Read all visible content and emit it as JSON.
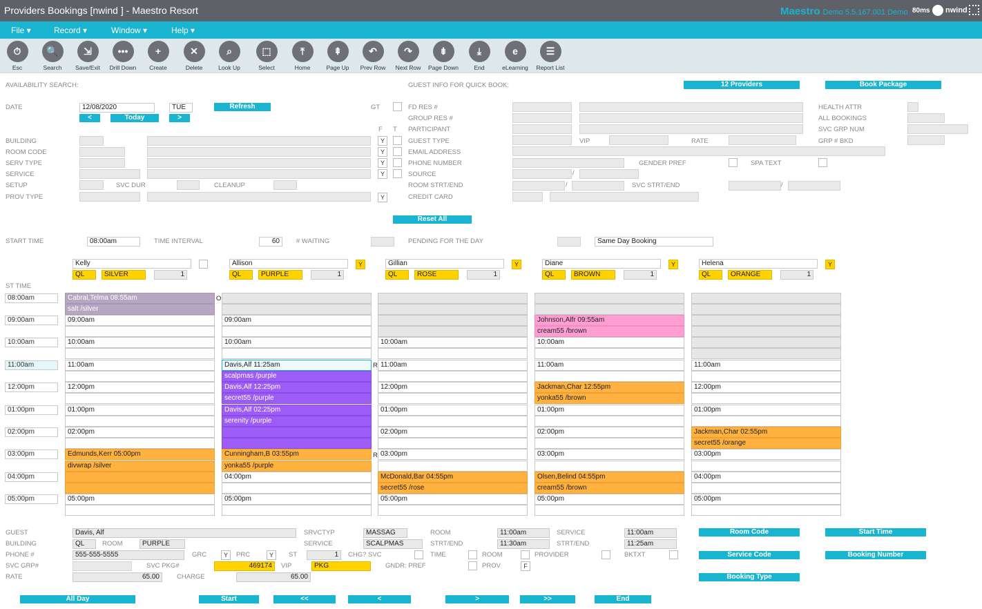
{
  "app": {
    "title": "Providers Bookings [nwind   ] - Maestro Resort",
    "brand": "Maestro",
    "version": "Demo  5.5.167.001  Demo",
    "latency": "80ms",
    "user": "nwind"
  },
  "menu": [
    "File ▾",
    "Record ▾",
    "Window ▾",
    "Help ▾"
  ],
  "toolbar": [
    {
      "label": "Esc",
      "icon": "⏱"
    },
    {
      "label": "Search",
      "icon": "🔍"
    },
    {
      "label": "Save/Exit",
      "icon": "⇲"
    },
    {
      "label": "Drill Down",
      "icon": "•••"
    },
    {
      "label": "Create",
      "icon": "+"
    },
    {
      "label": "Delete",
      "icon": "✕"
    },
    {
      "label": "Look Up",
      "icon": "⌕"
    },
    {
      "label": "Select",
      "icon": "⬚"
    },
    {
      "label": "Home",
      "icon": "⤒"
    },
    {
      "label": "Page Up",
      "icon": "⇞"
    },
    {
      "label": "Prev Row",
      "icon": "↶"
    },
    {
      "label": "Next Row",
      "icon": "↷"
    },
    {
      "label": "Page Down",
      "icon": "⇟"
    },
    {
      "label": "End",
      "icon": "⤓"
    },
    {
      "label": "eLearning",
      "icon": "e"
    },
    {
      "label": "Report List",
      "icon": "☰"
    }
  ],
  "search": {
    "section": "AVAILABILITY SEARCH:",
    "date_label": "DATE",
    "date": "12/08/2020",
    "day": "TUE",
    "refresh": "Refresh",
    "prev": "<",
    "today": "Today",
    "next": ">",
    "labels": [
      "BUILDING",
      "ROOM CODE",
      "SERV TYPE",
      "SERVICE",
      "SETUP",
      "PROV TYPE"
    ],
    "svc_dur": "SVC DUR",
    "cleanup": "CLEANUP"
  },
  "guest": {
    "section": "GUEST INFO FOR QUICK BOOK:",
    "providers_btn": "12 Providers",
    "package_btn": "Book Package",
    "gt": "GT",
    "f": "F",
    "t": "T",
    "labels": [
      "FD RES #",
      "GROUP RES #",
      "PARTICIPANT",
      "GUEST TYPE",
      "EMAIL ADDRESS",
      "PHONE NUMBER",
      "SOURCE",
      "ROOM STRT/END",
      "CREDIT CARD"
    ],
    "vip": "VIP",
    "rate": "RATE",
    "gender": "GENDER PREF",
    "spa": "SPA TEXT",
    "svc_strt": "SVC STRT/END",
    "right_labels": [
      "HEALTH ATTR",
      "ALL BOOKINGS",
      "SVC GRP NUM",
      "GRP # BKD"
    ],
    "reset": "Reset All",
    "y": "Y",
    "sep": "/"
  },
  "times": {
    "start_label": "START TIME",
    "start": "08:00am",
    "interval_label": "TIME INTERVAL",
    "interval": "60",
    "waiting_label": "# WAITING",
    "pending_label": "PENDING FOR THE DAY",
    "pending_value": "Same Day Booking",
    "st_time": "ST TIME"
  },
  "slots": [
    "08:00am",
    "09:00am",
    "10:00am",
    "11:00am",
    "12:00pm",
    "01:00pm",
    "02:00pm",
    "03:00pm",
    "04:00pm",
    "05:00pm"
  ],
  "providers": [
    {
      "name": "Kelly",
      "ql": "QL",
      "color": "SILVER",
      "count": "1",
      "flag": ""
    },
    {
      "name": "Allison",
      "ql": "QL",
      "color": "PURPLE",
      "count": "1",
      "flag": "Y"
    },
    {
      "name": "Gillian",
      "ql": "QL",
      "color": "ROSE",
      "count": "1",
      "flag": "Y"
    },
    {
      "name": "Diane",
      "ql": "QL",
      "color": "BROWN",
      "count": "1",
      "flag": "Y"
    },
    {
      "name": "Helena",
      "ql": "QL",
      "color": "ORANGE",
      "count": "1",
      "flag": "Y"
    }
  ],
  "columns": [
    [
      {
        "t": "Cabral,Telma 08:55am",
        "c": "mauve"
      },
      {
        "t": "salt      /silver",
        "c": "mauve"
      },
      {
        "t": "09:00am",
        "c": ""
      },
      {
        "t": "",
        "c": ""
      },
      {
        "t": "10:00am",
        "c": ""
      },
      {
        "t": "",
        "c": ""
      },
      {
        "t": "11:00am",
        "c": ""
      },
      {
        "t": "",
        "c": ""
      },
      {
        "t": "12:00pm",
        "c": ""
      },
      {
        "t": "",
        "c": ""
      },
      {
        "t": "01:00pm",
        "c": ""
      },
      {
        "t": "",
        "c": ""
      },
      {
        "t": "02:00pm",
        "c": ""
      },
      {
        "t": "",
        "c": ""
      },
      {
        "t": "Edmunds,Kerr 05:00pm",
        "c": "org"
      },
      {
        "t": "divwrap   /silver",
        "c": "org"
      },
      {
        "t": "",
        "c": "org"
      },
      {
        "t": "",
        "c": "org"
      },
      {
        "t": "05:00pm",
        "c": ""
      },
      {
        "t": "",
        "c": ""
      }
    ],
    [
      {
        "t": "",
        "c": "gry"
      },
      {
        "t": "",
        "c": "gry"
      },
      {
        "t": "09:00am",
        "c": ""
      },
      {
        "t": "",
        "c": ""
      },
      {
        "t": "10:00am",
        "c": ""
      },
      {
        "t": "",
        "c": ""
      },
      {
        "t": "Davis,Alf    11:25am",
        "c": "hl"
      },
      {
        "t": "scalpmas  /purple",
        "c": "pur"
      },
      {
        "t": "Davis,Alf     12:25pm",
        "c": "pur"
      },
      {
        "t": "secret55  /purple",
        "c": "pur"
      },
      {
        "t": "Davis,Alf     02:25pm",
        "c": "pur"
      },
      {
        "t": "serenity  /purple",
        "c": "pur"
      },
      {
        "t": "",
        "c": "pur"
      },
      {
        "t": "",
        "c": "pur"
      },
      {
        "t": "Cunningham,B 03:55pm",
        "c": "org"
      },
      {
        "t": "yonka55   /purple",
        "c": "org"
      },
      {
        "t": "04:00pm",
        "c": ""
      },
      {
        "t": "",
        "c": ""
      },
      {
        "t": "05:00pm",
        "c": ""
      },
      {
        "t": "",
        "c": ""
      }
    ],
    [
      {
        "t": "",
        "c": "gry"
      },
      {
        "t": "",
        "c": "gry"
      },
      {
        "t": "",
        "c": "gry"
      },
      {
        "t": "",
        "c": "gry"
      },
      {
        "t": "10:00am",
        "c": ""
      },
      {
        "t": "",
        "c": ""
      },
      {
        "t": "11:00am",
        "c": ""
      },
      {
        "t": "",
        "c": ""
      },
      {
        "t": "12:00pm",
        "c": ""
      },
      {
        "t": "",
        "c": ""
      },
      {
        "t": "01:00pm",
        "c": ""
      },
      {
        "t": "",
        "c": ""
      },
      {
        "t": "02:00pm",
        "c": ""
      },
      {
        "t": "",
        "c": ""
      },
      {
        "t": "03:00pm",
        "c": ""
      },
      {
        "t": "",
        "c": ""
      },
      {
        "t": "McDonald,Bar 04:55pm",
        "c": "org"
      },
      {
        "t": "secret55  /rose",
        "c": "org"
      },
      {
        "t": "05:00pm",
        "c": ""
      },
      {
        "t": "",
        "c": ""
      }
    ],
    [
      {
        "t": "",
        "c": "gry"
      },
      {
        "t": "",
        "c": "gry"
      },
      {
        "t": "Johnson,Alfr 09:55am",
        "c": "pnk"
      },
      {
        "t": "cream55    /brown",
        "c": "pnk"
      },
      {
        "t": "10:00am",
        "c": ""
      },
      {
        "t": "",
        "c": ""
      },
      {
        "t": "11:00am",
        "c": ""
      },
      {
        "t": "",
        "c": ""
      },
      {
        "t": "Jackman,Char 12:55pm",
        "c": "org"
      },
      {
        "t": "yonka55    /brown",
        "c": "org"
      },
      {
        "t": "01:00pm",
        "c": ""
      },
      {
        "t": "",
        "c": ""
      },
      {
        "t": "02:00pm",
        "c": ""
      },
      {
        "t": "",
        "c": ""
      },
      {
        "t": "03:00pm",
        "c": ""
      },
      {
        "t": "",
        "c": ""
      },
      {
        "t": "Olsen,Belind 04:55pm",
        "c": "org"
      },
      {
        "t": "cream55    /brown",
        "c": "org"
      },
      {
        "t": "05:00pm",
        "c": ""
      },
      {
        "t": "",
        "c": ""
      }
    ],
    [
      {
        "t": "",
        "c": "gry"
      },
      {
        "t": "",
        "c": "gry"
      },
      {
        "t": "",
        "c": "gry"
      },
      {
        "t": "",
        "c": "gry"
      },
      {
        "t": "",
        "c": "gry"
      },
      {
        "t": "",
        "c": "gry"
      },
      {
        "t": "11:00am",
        "c": ""
      },
      {
        "t": "",
        "c": ""
      },
      {
        "t": "12:00pm",
        "c": ""
      },
      {
        "t": "",
        "c": ""
      },
      {
        "t": "01:00pm",
        "c": ""
      },
      {
        "t": "",
        "c": ""
      },
      {
        "t": "Jackman,Char 02:55pm",
        "c": "org"
      },
      {
        "t": "secret55  /orange",
        "c": "org"
      },
      {
        "t": "03:00pm",
        "c": ""
      },
      {
        "t": "",
        "c": ""
      },
      {
        "t": "04:00pm",
        "c": ""
      },
      {
        "t": "",
        "c": ""
      },
      {
        "t": "05:00pm",
        "c": ""
      },
      {
        "t": "",
        "c": ""
      }
    ]
  ],
  "markers": {
    "o": "O",
    "r": "R"
  },
  "detail": {
    "labels": [
      "GUEST",
      "BUILDING",
      "PHONE #",
      "SVC GRP#",
      "RATE"
    ],
    "guest": "Davis, Alf",
    "building": "QL",
    "room_label": "ROOM",
    "room": "PURPLE",
    "phone": "555-555-5555",
    "grc": "GRC",
    "prc": "PRC",
    "st": "ST",
    "st_val": "1",
    "chg": "CHG? SVC",
    "svc_pkg": "SVC PKG#",
    "pkg_no": "469174",
    "vip": "VIP",
    "pkg": "PKG",
    "gndr": "GNDR: PREF",
    "rate": "65.00",
    "charge": "CHARGE",
    "charge_val": "65.00",
    "srvctyp_label": "SRVCTYP",
    "srvctyp": "MASSAG",
    "service_label": "SERVICE",
    "service": "SCALPMAS",
    "room2": "ROOM",
    "strt": "STRT/END",
    "time": "TIME",
    "t1": "11:00am",
    "t2": "11:30am",
    "room3": "ROOM",
    "prov": "PROV",
    "prov_v": "F",
    "service2": "SERVICE",
    "strt2": "STRT/END",
    "provider": "PROVIDER",
    "bktxt": "BKTXT",
    "s1": "11:00am",
    "s2": "11:25am"
  },
  "actions": [
    "Room Code",
    "Start Time",
    "Service Code",
    "Booking Number",
    "Booking Type"
  ],
  "nav": [
    "All Day",
    "Start",
    "<<",
    "<",
    ">",
    ">>",
    "End"
  ]
}
